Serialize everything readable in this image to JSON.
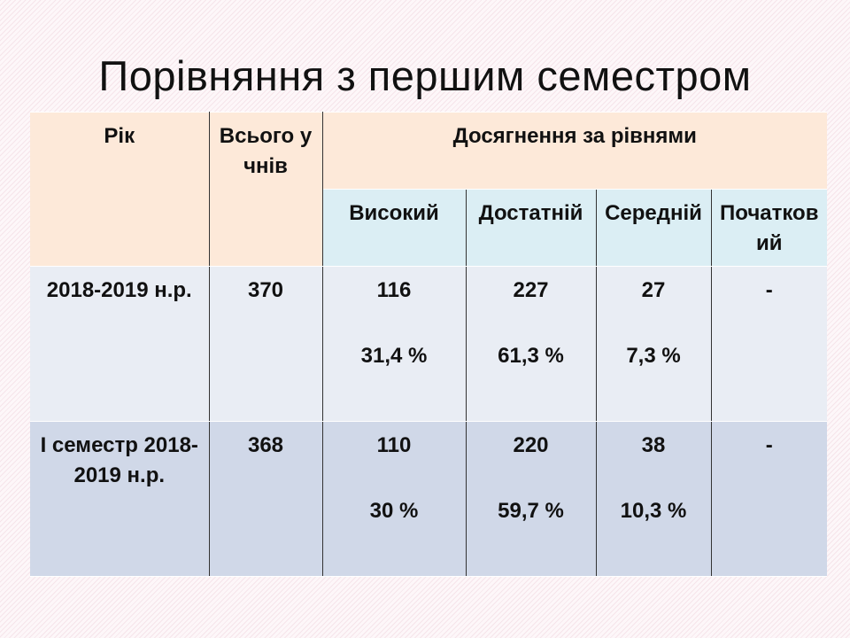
{
  "header": {
    "title": "Порівняння з першим семестром"
  },
  "table": {
    "columns": {
      "year": "Рік",
      "total": "Всього учнів",
      "achievement": "Досягнення за рівнями",
      "levels": [
        "Високий",
        "Достатній",
        "Середній",
        "Початковий"
      ]
    },
    "rows": [
      {
        "year": "2018-2019 н.р.",
        "total": "370",
        "levels": [
          {
            "count": "116",
            "percent": "31,4 %"
          },
          {
            "count": "227",
            "percent": "61,3 %"
          },
          {
            "count": "27",
            "percent": "7,3 %"
          },
          {
            "count": "-"
          }
        ]
      },
      {
        "year": "І семестр 2018-2019 н.р.",
        "total": "368",
        "levels": [
          {
            "count": "110",
            "percent": "30 %"
          },
          {
            "count": "220",
            "percent": "59,7 %"
          },
          {
            "count": "38",
            "percent": "10,3 %"
          },
          {
            "count": "-"
          }
        ]
      }
    ]
  }
}
